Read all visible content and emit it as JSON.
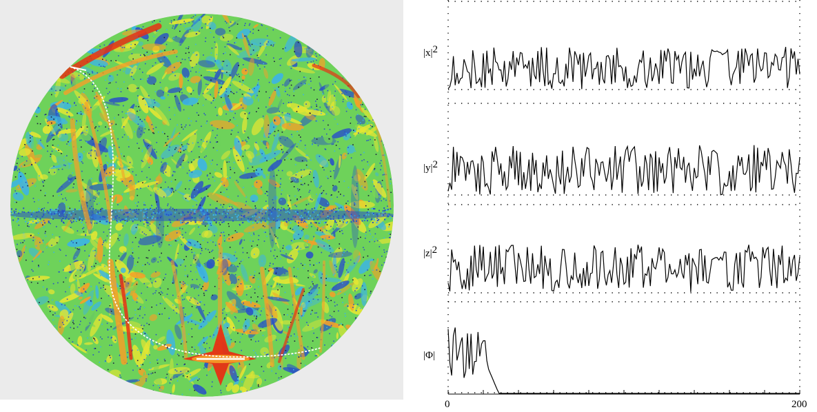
{
  "sphere": {
    "colors": {
      "background": "#ebebeb",
      "green": "#6ed25a",
      "yellow": "#e6e632",
      "orange": "#f5a028",
      "red": "#e63214",
      "blue": "#2850c8",
      "cyan": "#3cb4e6",
      "trajectory": "#ffffff"
    }
  },
  "plots": {
    "x_axis": {
      "min": 0,
      "max": 200,
      "tick_labels": [
        "0",
        "200"
      ]
    },
    "panels": [
      {
        "id": "x",
        "label_main": "|x|",
        "label_sup": "2"
      },
      {
        "id": "y",
        "label_main": "|y|",
        "label_sup": "2"
      },
      {
        "id": "z",
        "label_main": "|z|",
        "label_sup": "2"
      },
      {
        "id": "phi",
        "label_main": "|Φ|",
        "label_sup": ""
      }
    ]
  }
}
